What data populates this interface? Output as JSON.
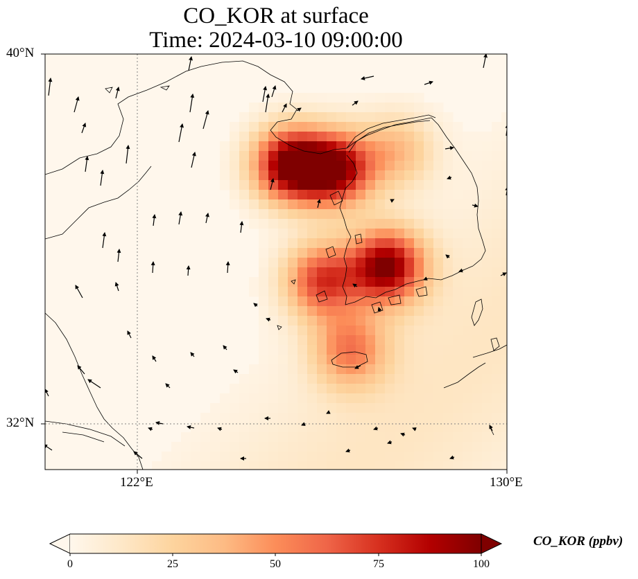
{
  "title": {
    "line1": "CO_KOR at surface",
    "line2": "Time: 2024-03-10 09:00:00"
  },
  "map": {
    "lon_range": [
      120,
      130
    ],
    "lat_range": [
      31,
      40
    ],
    "gridlines_lon": [
      122,
      130
    ],
    "gridlines_lat": [
      32,
      40
    ],
    "x_ticks": [
      "122°E",
      "130°E"
    ],
    "y_ticks": [
      "40°N",
      "32°N"
    ],
    "field": "CO_KOR",
    "colormap": "OrRd",
    "coastline_color": "#000000"
  },
  "colorbar": {
    "label": "CO_KOR (ppbv)",
    "ticks": [
      "0",
      "25",
      "50",
      "75",
      "100"
    ],
    "min": 0,
    "max": 100,
    "extend": "both",
    "colors": [
      "#fff7ec",
      "#fee8c8",
      "#fdd49e",
      "#fdbb84",
      "#fc8d59",
      "#ef6548",
      "#d7301f",
      "#b30000",
      "#7f0000"
    ]
  },
  "plumes": [
    {
      "lon": 125.3,
      "lat": 37.6,
      "peak": 100
    },
    {
      "lon": 126.3,
      "lat": 37.5,
      "peak": 92
    },
    {
      "lon": 127.4,
      "lat": 35.4,
      "peak": 95
    },
    {
      "lon": 126.0,
      "lat": 35.1,
      "peak": 70
    },
    {
      "lon": 126.6,
      "lat": 33.6,
      "peak": 50
    },
    {
      "lon": 127.6,
      "lat": 37.9,
      "peak": 35
    }
  ]
}
